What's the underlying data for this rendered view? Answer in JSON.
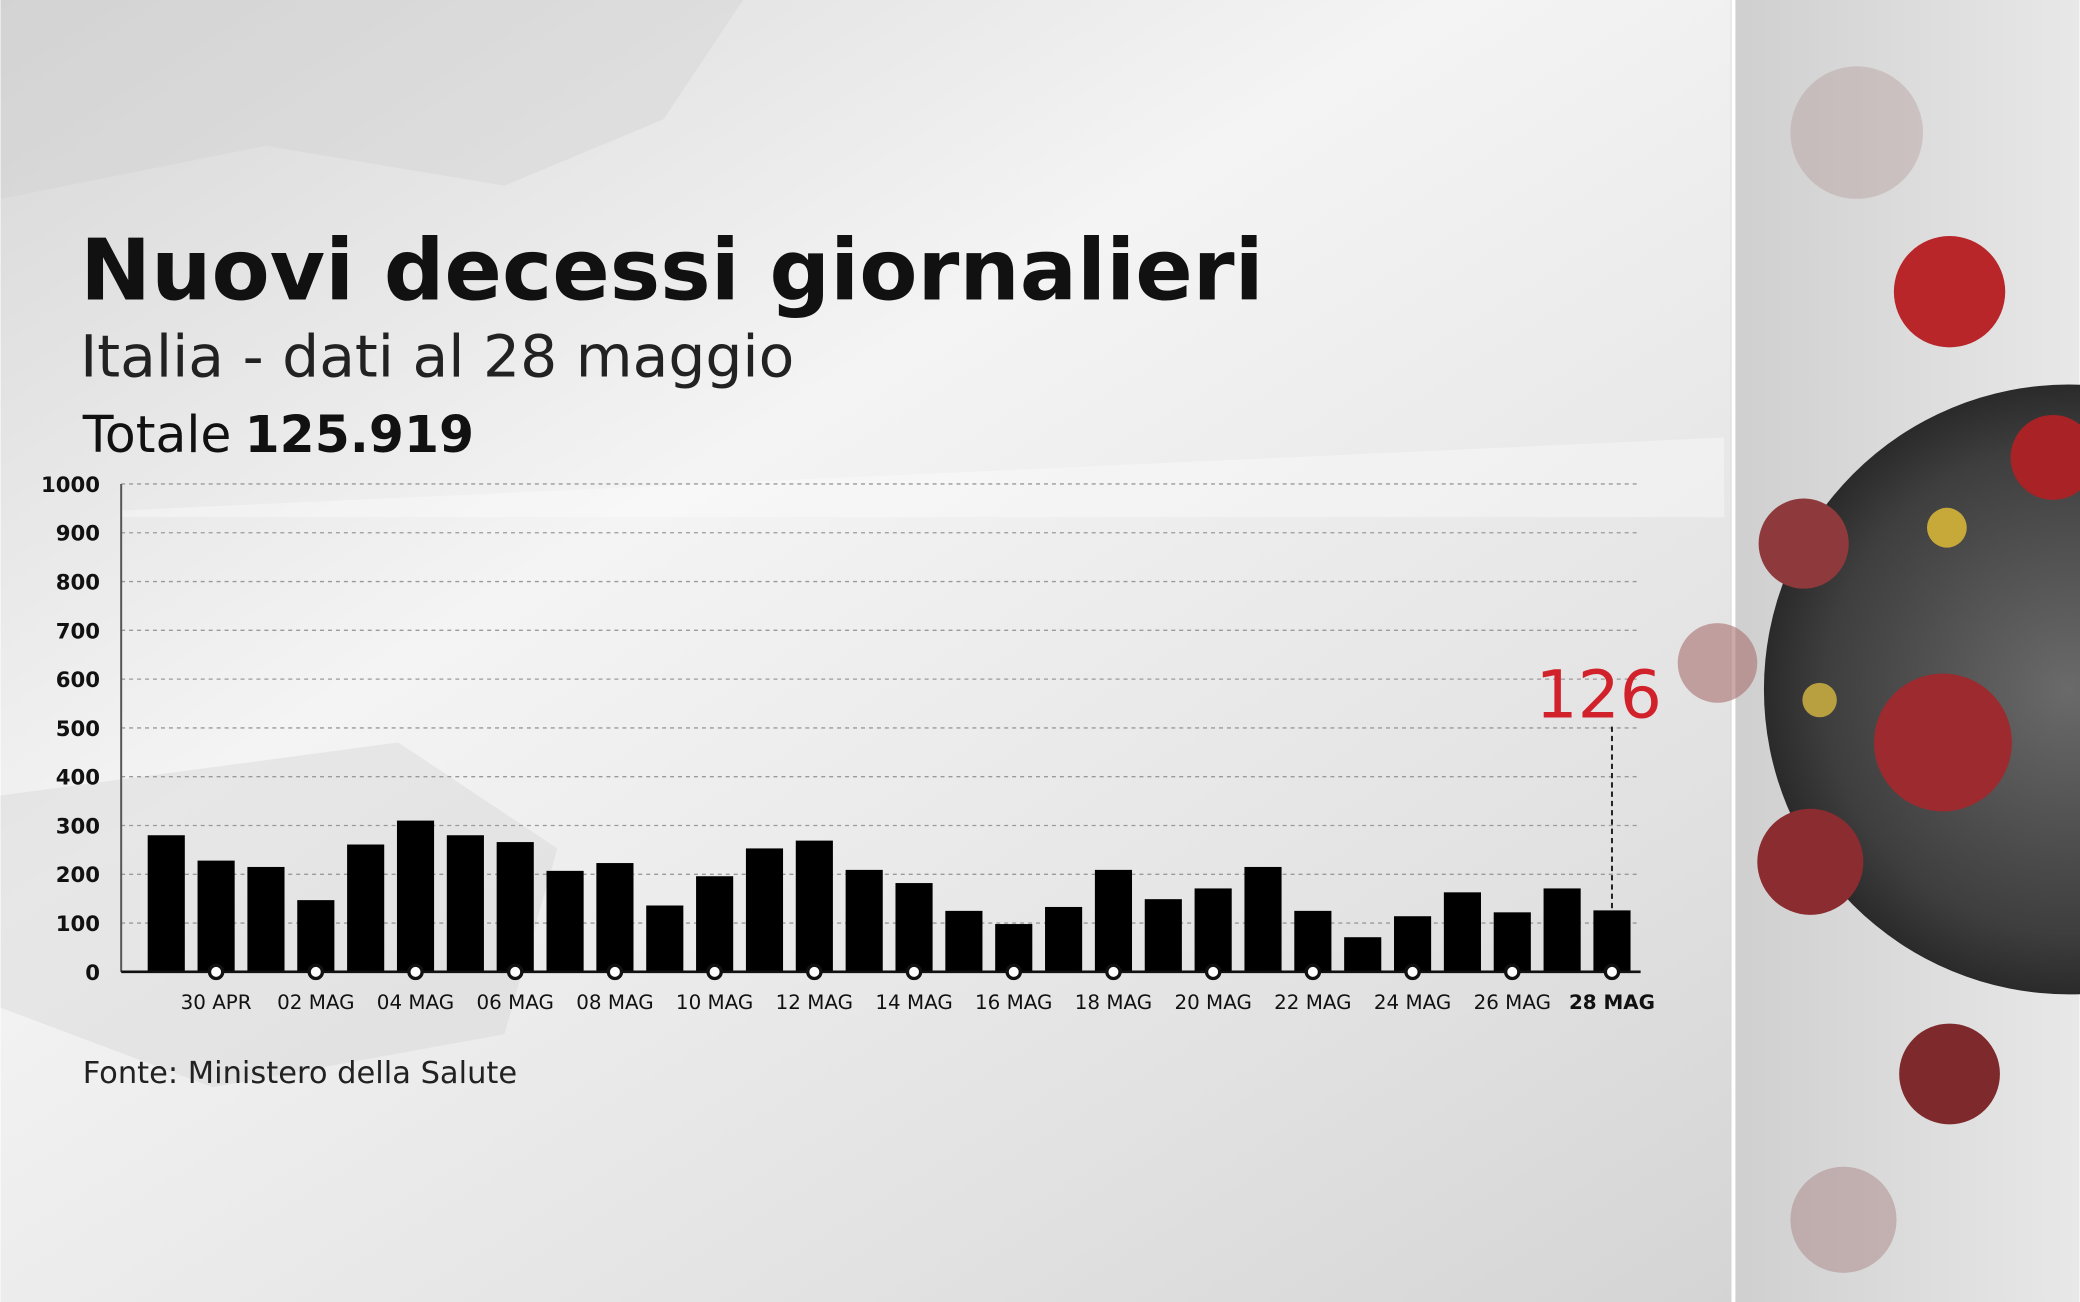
{
  "chart_data": {
    "type": "bar",
    "title": "Nuovi decessi giornalieri",
    "subtitle": "Italia - dati al 28 maggio",
    "total_label": "Totale",
    "total_value": "125.919",
    "source": "Fonte: Ministero della Salute",
    "categories": [
      null,
      "30 APR",
      null,
      "02 MAG",
      null,
      "04 MAG",
      null,
      "06 MAG",
      null,
      "08 MAG",
      null,
      "10 MAG",
      null,
      "12 MAG",
      null,
      "14 MAG",
      null,
      "16 MAG",
      null,
      "18 MAG",
      null,
      "20 MAG",
      null,
      "22 MAG",
      null,
      "24 MAG",
      null,
      "26 MAG",
      null,
      "28 MAG"
    ],
    "values": [
      280,
      228,
      215,
      147,
      261,
      310,
      280,
      266,
      207,
      223,
      136,
      196,
      253,
      269,
      209,
      182,
      125,
      98,
      133,
      209,
      149,
      171,
      215,
      125,
      71,
      114,
      163,
      122,
      171,
      126
    ],
    "color": "#000000",
    "highlight_color": "#d1222b",
    "ylim": [
      0,
      1000
    ],
    "yticks": [
      0,
      100,
      200,
      300,
      400,
      500,
      600,
      700,
      800,
      900,
      1000
    ],
    "grid": true
  }
}
